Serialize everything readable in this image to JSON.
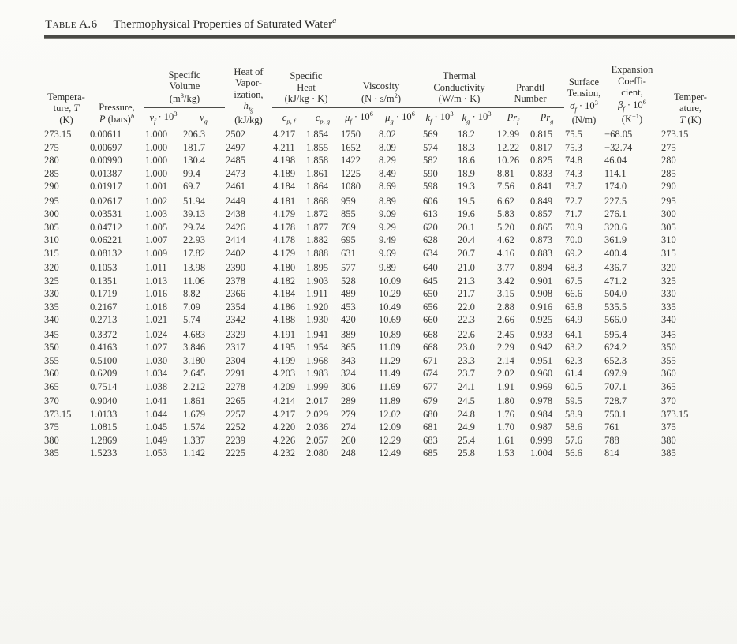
{
  "title": {
    "label": "Table A.6",
    "caption_html": "Thermophysical Properties of Saturated Water<sup><i>a</i></sup>"
  },
  "table": {
    "header": {
      "temperature_left_html": "Tempera-<br>ture, <i>T</i><br>(K)",
      "pressure_html": "Pressure,<br><i>P</i> (bars)<sup><i>b</i></sup>",
      "specific_volume_html": "Specific<br>Volume<br>(m<sup>3</sup>/kg)",
      "heat_vaporization_html": "Heat of<br>Vapor-<br>ization,<br><i>h<sub>fg</sub></i><br>(kJ/kg)",
      "specific_heat_html": "Specific<br>Heat<br>(kJ/kg · K)",
      "viscosity_html": "Viscosity<br>(N · s/m<sup>2</sup>)",
      "thermal_conductivity_html": "Thermal<br>Conductivity<br>(W/m · K)",
      "prandtl_html": "Prandtl<br>Number",
      "surface_tension_html": "Surface<br>Tension,<br><i>σ<sub>f</sub></i> · 10<sup>3</sup><br>(N/m)",
      "expansion_html": "Expansion<br>Coeffi-<br>cient,<br><i>β<sub>f</sub></i> · 10<sup>6</sup><br>(K<sup>−1</sup>)",
      "temperature_right_html": "Temper-<br>ature,<br><i>T</i> (K)",
      "sub_labels_html": [
        "<i>v<sub>f</sub></i> · 10<sup>3</sup>",
        "<i>v<sub>g</sub></i>",
        "<i>c<sub>p, f</sub></i>",
        "<i>c<sub>p, g</sub></i>",
        "<i>μ<sub>f</sub></i> · 10<sup>6</sup>",
        "<i>μ<sub>g</sub></i> · 10<sup>6</sup>",
        "<i>k<sub>f</sub></i> · 10<sup>3</sup>",
        "<i>k<sub>g</sub></i> · 10<sup>3</sup>",
        "<i>Pr<sub>f</sub></i>",
        "<i>Pr<sub>g</sub></i>"
      ]
    },
    "scan_artifact_dotted_row": "310",
    "row_groups": [
      [
        [
          "273.15",
          "0.00611",
          "1.000",
          "206.3",
          "2502",
          "4.217",
          "1.854",
          "1750",
          "8.02",
          "569",
          "18.2",
          "12.99",
          "0.815",
          "75.5",
          "−68.05",
          "273.15"
        ],
        [
          "275",
          "0.00697",
          "1.000",
          "181.7",
          "2497",
          "4.211",
          "1.855",
          "1652",
          "8.09",
          "574",
          "18.3",
          "12.22",
          "0.817",
          "75.3",
          "−32.74",
          "275"
        ],
        [
          "280",
          "0.00990",
          "1.000",
          "130.4",
          "2485",
          "4.198",
          "1.858",
          "1422",
          "8.29",
          "582",
          "18.6",
          "10.26",
          "0.825",
          "74.8",
          "46.04",
          "280"
        ],
        [
          "285",
          "0.01387",
          "1.000",
          "99.4",
          "2473",
          "4.189",
          "1.861",
          "1225",
          "8.49",
          "590",
          "18.9",
          "8.81",
          "0.833",
          "74.3",
          "114.1",
          "285"
        ],
        [
          "290",
          "0.01917",
          "1.001",
          "69.7",
          "2461",
          "4.184",
          "1.864",
          "1080",
          "8.69",
          "598",
          "19.3",
          "7.56",
          "0.841",
          "73.7",
          "174.0",
          "290"
        ]
      ],
      [
        [
          "295",
          "0.02617",
          "1.002",
          "51.94",
          "2449",
          "4.181",
          "1.868",
          "959",
          "8.89",
          "606",
          "19.5",
          "6.62",
          "0.849",
          "72.7",
          "227.5",
          "295"
        ],
        [
          "300",
          "0.03531",
          "1.003",
          "39.13",
          "2438",
          "4.179",
          "1.872",
          "855",
          "9.09",
          "613",
          "19.6",
          "5.83",
          "0.857",
          "71.7",
          "276.1",
          "300"
        ],
        [
          "305",
          "0.04712",
          "1.005",
          "29.74",
          "2426",
          "4.178",
          "1.877",
          "769",
          "9.29",
          "620",
          "20.1",
          "5.20",
          "0.865",
          "70.9",
          "320.6",
          "305"
        ],
        [
          "310",
          "0.06221",
          "1.007",
          "22.93",
          "2414",
          "4.178",
          "1.882",
          "695",
          "9.49",
          "628",
          "20.4",
          "4.62",
          "0.873",
          "70.0",
          "361.9",
          "310"
        ],
        [
          "315",
          "0.08132",
          "1.009",
          "17.82",
          "2402",
          "4.179",
          "1.888",
          "631",
          "9.69",
          "634",
          "20.7",
          "4.16",
          "0.883",
          "69.2",
          "400.4",
          "315"
        ]
      ],
      [
        [
          "320",
          "0.1053",
          "1.011",
          "13.98",
          "2390",
          "4.180",
          "1.895",
          "577",
          "9.89",
          "640",
          "21.0",
          "3.77",
          "0.894",
          "68.3",
          "436.7",
          "320"
        ],
        [
          "325",
          "0.1351",
          "1.013",
          "11.06",
          "2378",
          "4.182",
          "1.903",
          "528",
          "10.09",
          "645",
          "21.3",
          "3.42",
          "0.901",
          "67.5",
          "471.2",
          "325"
        ],
        [
          "330",
          "0.1719",
          "1.016",
          "8.82",
          "2366",
          "4.184",
          "1.911",
          "489",
          "10.29",
          "650",
          "21.7",
          "3.15",
          "0.908",
          "66.6",
          "504.0",
          "330"
        ],
        [
          "335",
          "0.2167",
          "1.018",
          "7.09",
          "2354",
          "4.186",
          "1.920",
          "453",
          "10.49",
          "656",
          "22.0",
          "2.88",
          "0.916",
          "65.8",
          "535.5",
          "335"
        ],
        [
          "340",
          "0.2713",
          "1.021",
          "5.74",
          "2342",
          "4.188",
          "1.930",
          "420",
          "10.69",
          "660",
          "22.3",
          "2.66",
          "0.925",
          "64.9",
          "566.0",
          "340"
        ]
      ],
      [
        [
          "345",
          "0.3372",
          "1.024",
          "4.683",
          "2329",
          "4.191",
          "1.941",
          "389",
          "10.89",
          "668",
          "22.6",
          "2.45",
          "0.933",
          "64.1",
          "595.4",
          "345"
        ],
        [
          "350",
          "0.4163",
          "1.027",
          "3.846",
          "2317",
          "4.195",
          "1.954",
          "365",
          "11.09",
          "668",
          "23.0",
          "2.29",
          "0.942",
          "63.2",
          "624.2",
          "350"
        ],
        [
          "355",
          "0.5100",
          "1.030",
          "3.180",
          "2304",
          "4.199",
          "1.968",
          "343",
          "11.29",
          "671",
          "23.3",
          "2.14",
          "0.951",
          "62.3",
          "652.3",
          "355"
        ],
        [
          "360",
          "0.6209",
          "1.034",
          "2.645",
          "2291",
          "4.203",
          "1.983",
          "324",
          "11.49",
          "674",
          "23.7",
          "2.02",
          "0.960",
          "61.4",
          "697.9",
          "360"
        ],
        [
          "365",
          "0.7514",
          "1.038",
          "2.212",
          "2278",
          "4.209",
          "1.999",
          "306",
          "11.69",
          "677",
          "24.1",
          "1.91",
          "0.969",
          "60.5",
          "707.1",
          "365"
        ]
      ],
      [
        [
          "370",
          "0.9040",
          "1.041",
          "1.861",
          "2265",
          "4.214",
          "2.017",
          "289",
          "11.89",
          "679",
          "24.5",
          "1.80",
          "0.978",
          "59.5",
          "728.7",
          "370"
        ],
        [
          "373.15",
          "1.0133",
          "1.044",
          "1.679",
          "2257",
          "4.217",
          "2.029",
          "279",
          "12.02",
          "680",
          "24.8",
          "1.76",
          "0.984",
          "58.9",
          "750.1",
          "373.15"
        ],
        [
          "375",
          "1.0815",
          "1.045",
          "1.574",
          "2252",
          "4.220",
          "2.036",
          "274",
          "12.09",
          "681",
          "24.9",
          "1.70",
          "0.987",
          "58.6",
          "761",
          "375"
        ],
        [
          "380",
          "1.2869",
          "1.049",
          "1.337",
          "2239",
          "4.226",
          "2.057",
          "260",
          "12.29",
          "683",
          "25.4",
          "1.61",
          "0.999",
          "57.6",
          "788",
          "380"
        ],
        [
          "385",
          "1.5233",
          "1.053",
          "1.142",
          "2225",
          "4.232",
          "2.080",
          "248",
          "12.49",
          "685",
          "25.8",
          "1.53",
          "1.004",
          "56.6",
          "814",
          "385"
        ]
      ]
    ]
  }
}
